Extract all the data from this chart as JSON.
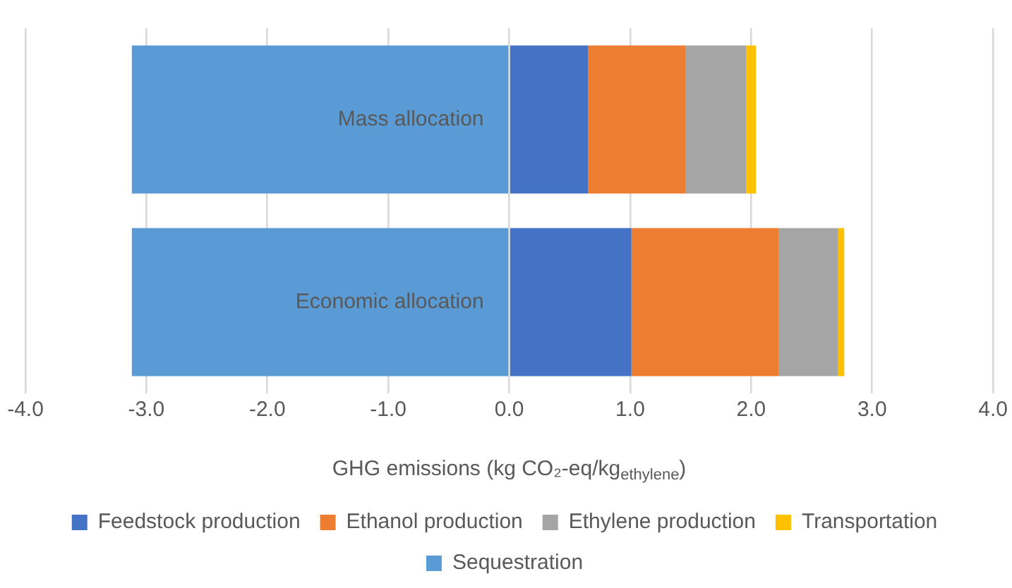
{
  "chart_data": {
    "type": "bar",
    "orientation": "horizontal",
    "stacked": true,
    "xlabel": "GHG emissions (kg CO₂-eq/kg$_{ethylene}$)",
    "categories": [
      "Mass allocation",
      "Economic allocation"
    ],
    "series": [
      {
        "name": "Feedstock production",
        "color": "#4472c4",
        "values": [
          0.65,
          1.01
        ]
      },
      {
        "name": "Ethanol production",
        "color": "#ed7d31",
        "values": [
          0.81,
          1.22
        ]
      },
      {
        "name": "Ethylene production",
        "color": "#a5a5a5",
        "values": [
          0.5,
          0.49
        ]
      },
      {
        "name": "Transportation",
        "color": "#ffc000",
        "values": [
          0.08,
          0.05
        ]
      },
      {
        "name": "Sequestration",
        "color": "#5b9bd5",
        "values": [
          -3.12,
          -3.12
        ]
      }
    ],
    "xlim": [
      -4,
      4
    ],
    "xticks": [
      {
        "value": -4,
        "label": "-4.0"
      },
      {
        "value": -3,
        "label": "-3.0"
      },
      {
        "value": -2,
        "label": "-2.0"
      },
      {
        "value": -1,
        "label": "-1.0"
      },
      {
        "value": 0,
        "label": "0.0"
      },
      {
        "value": 1,
        "label": "1.0"
      },
      {
        "value": 2,
        "label": "2.0"
      },
      {
        "value": 3,
        "label": "3.0"
      },
      {
        "value": 4,
        "label": "4.0"
      }
    ],
    "grid": "x",
    "legend": "bottom"
  }
}
